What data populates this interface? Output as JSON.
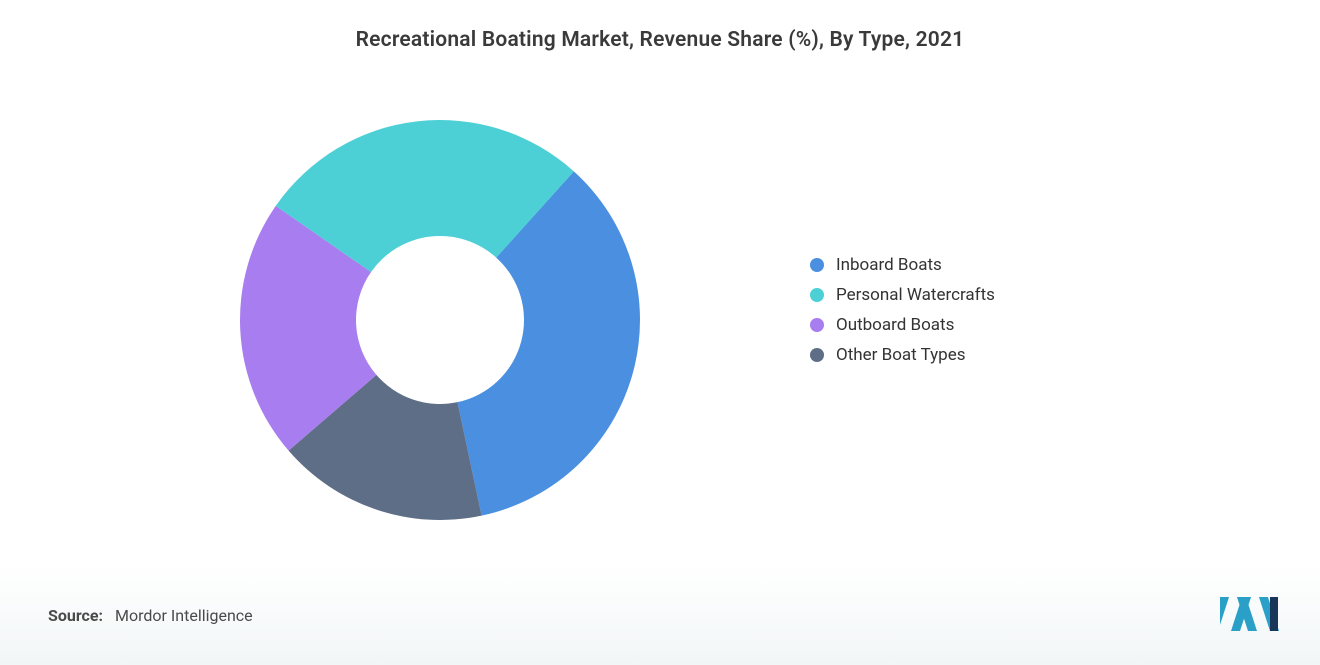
{
  "title": "Recreational Boating Market, Revenue Share (%), By Type, 2021",
  "chart": {
    "type": "donut",
    "inner_radius_ratio": 0.42,
    "start_angle_deg": -48,
    "background_color": "#ffffff",
    "series": [
      {
        "label": "Inboard Boats",
        "value": 35,
        "color": "#4a8fe0"
      },
      {
        "label": "Other Boat Types",
        "value": 17,
        "color": "#5d6e86"
      },
      {
        "label": "Outboard Boats",
        "value": 21,
        "color": "#a87df0"
      },
      {
        "label": "Personal Watercrafts",
        "value": 27,
        "color": "#4cd0d6"
      }
    ],
    "legend_order": [
      0,
      3,
      2,
      1
    ],
    "legend_fontsize": 17,
    "legend_text_color": "#333333",
    "title_fontsize": 21,
    "title_color": "#3a3a3a"
  },
  "source": {
    "label": "Source:",
    "text": "Mordor Intelligence"
  },
  "logo": {
    "bar_color": "#2aa0c8",
    "accent_color": "#17365a"
  }
}
